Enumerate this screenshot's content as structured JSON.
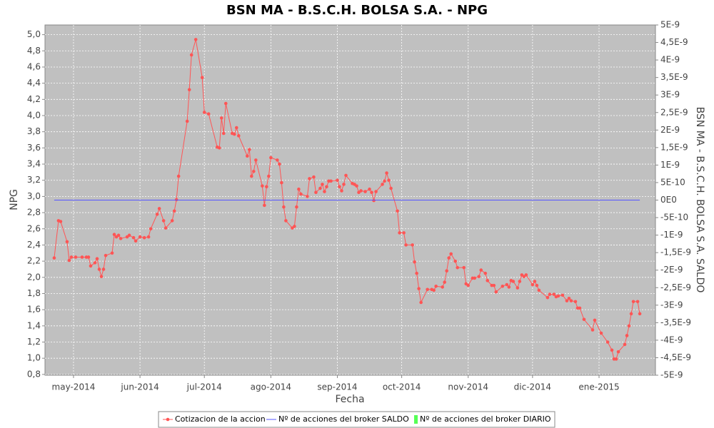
{
  "chart_data": {
    "type": "line",
    "title": "BSN MA - B.S.C.H. BOLSA S.A. - NPG",
    "x_label": "Fecha",
    "y_label": "NPG",
    "y2_label": "BSN MA - B.S.C.H. BOLSA S.A. SALDO",
    "grid": true,
    "background": "#c0c0c0",
    "xlim": [
      -13.3,
      271.3
    ],
    "xticks": [
      {
        "value": 0,
        "label": "may-2014"
      },
      {
        "value": 31,
        "label": "jun-2014"
      },
      {
        "value": 61,
        "label": "jul-2014"
      },
      {
        "value": 92,
        "label": "ago-2014"
      },
      {
        "value": 123,
        "label": "sep-2014"
      },
      {
        "value": 153,
        "label": "oct-2014"
      },
      {
        "value": 184,
        "label": "nov-2014"
      },
      {
        "value": 214,
        "label": "dic-2014"
      },
      {
        "value": 245,
        "label": "ene-2015"
      }
    ],
    "ylim": [
      0.79,
      5.12
    ],
    "yticks": [
      {
        "value": 0.8,
        "label": "0,8"
      },
      {
        "value": 1.0,
        "label": "1,0"
      },
      {
        "value": 1.2,
        "label": "1,2"
      },
      {
        "value": 1.4,
        "label": "1,4"
      },
      {
        "value": 1.6,
        "label": "1,6"
      },
      {
        "value": 1.8,
        "label": "1,8"
      },
      {
        "value": 2.0,
        "label": "2,0"
      },
      {
        "value": 2.2,
        "label": "2,2"
      },
      {
        "value": 2.4,
        "label": "2,4"
      },
      {
        "value": 2.6,
        "label": "2,6"
      },
      {
        "value": 2.8,
        "label": "2,8"
      },
      {
        "value": 3.0,
        "label": "3,0"
      },
      {
        "value": 3.2,
        "label": "3,2"
      },
      {
        "value": 3.4,
        "label": "3,4"
      },
      {
        "value": 3.6,
        "label": "3,6"
      },
      {
        "value": 3.8,
        "label": "3,8"
      },
      {
        "value": 4.0,
        "label": "4,0"
      },
      {
        "value": 4.2,
        "label": "4,2"
      },
      {
        "value": 4.4,
        "label": "4,4"
      },
      {
        "value": 4.6,
        "label": "4,6"
      },
      {
        "value": 4.8,
        "label": "4,8"
      },
      {
        "value": 5.0,
        "label": "5,0"
      }
    ],
    "y2lim": [
      -5e-09,
      5e-09
    ],
    "y2ticks": [
      {
        "value": -5e-09,
        "label": "-5E-9"
      },
      {
        "value": -4.5e-09,
        "label": "-4,5E-9"
      },
      {
        "value": -4e-09,
        "label": "-4E-9"
      },
      {
        "value": -3.5e-09,
        "label": "-3,5E-9"
      },
      {
        "value": -3e-09,
        "label": "-3E-9"
      },
      {
        "value": -2.5e-09,
        "label": "-2,5E-9"
      },
      {
        "value": -2e-09,
        "label": "-2E-9"
      },
      {
        "value": -1.5e-09,
        "label": "-1,5E-9"
      },
      {
        "value": -1e-09,
        "label": "-1E-9"
      },
      {
        "value": -5e-10,
        "label": "-5E-10"
      },
      {
        "value": 0,
        "label": "0E0"
      },
      {
        "value": 5e-10,
        "label": "5E-10"
      },
      {
        "value": 1e-09,
        "label": "1E-9"
      },
      {
        "value": 1.5e-09,
        "label": "1,5E-9"
      },
      {
        "value": 2e-09,
        "label": "2E-9"
      },
      {
        "value": 2.5e-09,
        "label": "2,5E-9"
      },
      {
        "value": 3e-09,
        "label": "3E-9"
      },
      {
        "value": 3.5e-09,
        "label": "3,5E-9"
      },
      {
        "value": 4e-09,
        "label": "4E-9"
      },
      {
        "value": 4.5e-09,
        "label": "4,5E-9"
      },
      {
        "value": 5e-09,
        "label": "5E-9"
      }
    ],
    "series": [
      {
        "name": "Cotizacion de la accion",
        "color": "#ff5555",
        "markers": true,
        "x": [
          -9,
          -7,
          -6,
          -3,
          -2,
          -1,
          1,
          4,
          6,
          7,
          8,
          10,
          11,
          12,
          13,
          14,
          15,
          18,
          19,
          20,
          21,
          22,
          25,
          26,
          28,
          29,
          31,
          33,
          35,
          36,
          39,
          40,
          42,
          43,
          46,
          47,
          48,
          49,
          53,
          54,
          55,
          57,
          60,
          61,
          63,
          67,
          68,
          69,
          70,
          71,
          74,
          75,
          76,
          77,
          81,
          82,
          83,
          84,
          85,
          88,
          89,
          90,
          91,
          92,
          95,
          96,
          97,
          98,
          99,
          102,
          103,
          104,
          105,
          106,
          109,
          110,
          112,
          113,
          115,
          116,
          117,
          118,
          119,
          120,
          123,
          124,
          125,
          126,
          127,
          130,
          131,
          132,
          133,
          134,
          136,
          138,
          139,
          140,
          141,
          144,
          145,
          146,
          147,
          148,
          151,
          152,
          154,
          155,
          158,
          159,
          160,
          161,
          162,
          165,
          167,
          168,
          169,
          172,
          173,
          174,
          175,
          176,
          178,
          179,
          182,
          183,
          184,
          186,
          187,
          189,
          190,
          192,
          193,
          195,
          196,
          197,
          200,
          202,
          203,
          204,
          205,
          207,
          208,
          209,
          210,
          211,
          214,
          215,
          216,
          217,
          221,
          222,
          224,
          225,
          226,
          228,
          230,
          231,
          232,
          234,
          235,
          236,
          238,
          242,
          243,
          246,
          249,
          251,
          252,
          253,
          254,
          257,
          258,
          259,
          260,
          261,
          263,
          264
        ],
        "values": [
          2.24,
          2.7,
          2.69,
          2.44,
          2.21,
          2.25,
          2.25,
          2.25,
          2.25,
          2.25,
          2.14,
          2.18,
          2.23,
          2.1,
          2.01,
          2.1,
          2.27,
          2.3,
          2.53,
          2.5,
          2.52,
          2.48,
          2.5,
          2.52,
          2.49,
          2.45,
          2.5,
          2.49,
          2.5,
          2.6,
          2.78,
          2.85,
          2.7,
          2.61,
          2.7,
          2.82,
          2.96,
          3.25,
          3.93,
          4.32,
          4.75,
          4.94,
          4.47,
          4.04,
          4.02,
          3.61,
          3.6,
          3.97,
          3.78,
          4.15,
          3.78,
          3.77,
          3.85,
          3.75,
          3.5,
          3.58,
          3.25,
          3.31,
          3.45,
          3.13,
          2.89,
          3.12,
          3.25,
          3.48,
          3.45,
          3.4,
          3.17,
          2.87,
          2.7,
          2.61,
          2.63,
          2.87,
          3.09,
          3.03,
          3.0,
          3.22,
          3.24,
          3.05,
          3.1,
          3.15,
          3.06,
          3.12,
          3.19,
          3.19,
          3.2,
          3.12,
          3.07,
          3.15,
          3.26,
          3.16,
          3.15,
          3.13,
          3.05,
          3.07,
          3.06,
          3.09,
          3.05,
          2.95,
          3.06,
          3.15,
          3.19,
          3.29,
          3.2,
          3.1,
          2.82,
          2.55,
          2.55,
          2.4,
          2.4,
          2.19,
          2.05,
          1.86,
          1.69,
          1.85,
          1.85,
          1.84,
          1.89,
          1.88,
          1.94,
          2.08,
          2.24,
          2.29,
          2.2,
          2.12,
          2.12,
          1.92,
          1.9,
          1.99,
          1.99,
          2.01,
          2.09,
          2.05,
          1.96,
          1.9,
          1.9,
          1.82,
          1.89,
          1.91,
          1.88,
          1.96,
          1.95,
          1.87,
          1.95,
          2.03,
          2.01,
          2.03,
          1.91,
          1.95,
          1.9,
          1.84,
          1.75,
          1.79,
          1.79,
          1.76,
          1.77,
          1.78,
          1.71,
          1.74,
          1.71,
          1.7,
          1.62,
          1.62,
          1.48,
          1.35,
          1.47,
          1.31,
          1.2,
          1.1,
          0.99,
          0.99,
          1.08,
          1.17,
          1.28,
          1.4,
          1.55,
          1.7,
          1.7,
          1.55
        ]
      },
      {
        "name": "Nº de acciones del broker SALDO",
        "color": "#5555ff",
        "axis": "y2",
        "markers": false,
        "x": [
          -9,
          264
        ],
        "values": [
          0,
          0
        ]
      },
      {
        "name": "Nº de acciones del broker DIARIO",
        "color": "#55ff55",
        "axis": "y2",
        "kind": "bar",
        "x": [],
        "values": []
      }
    ]
  }
}
